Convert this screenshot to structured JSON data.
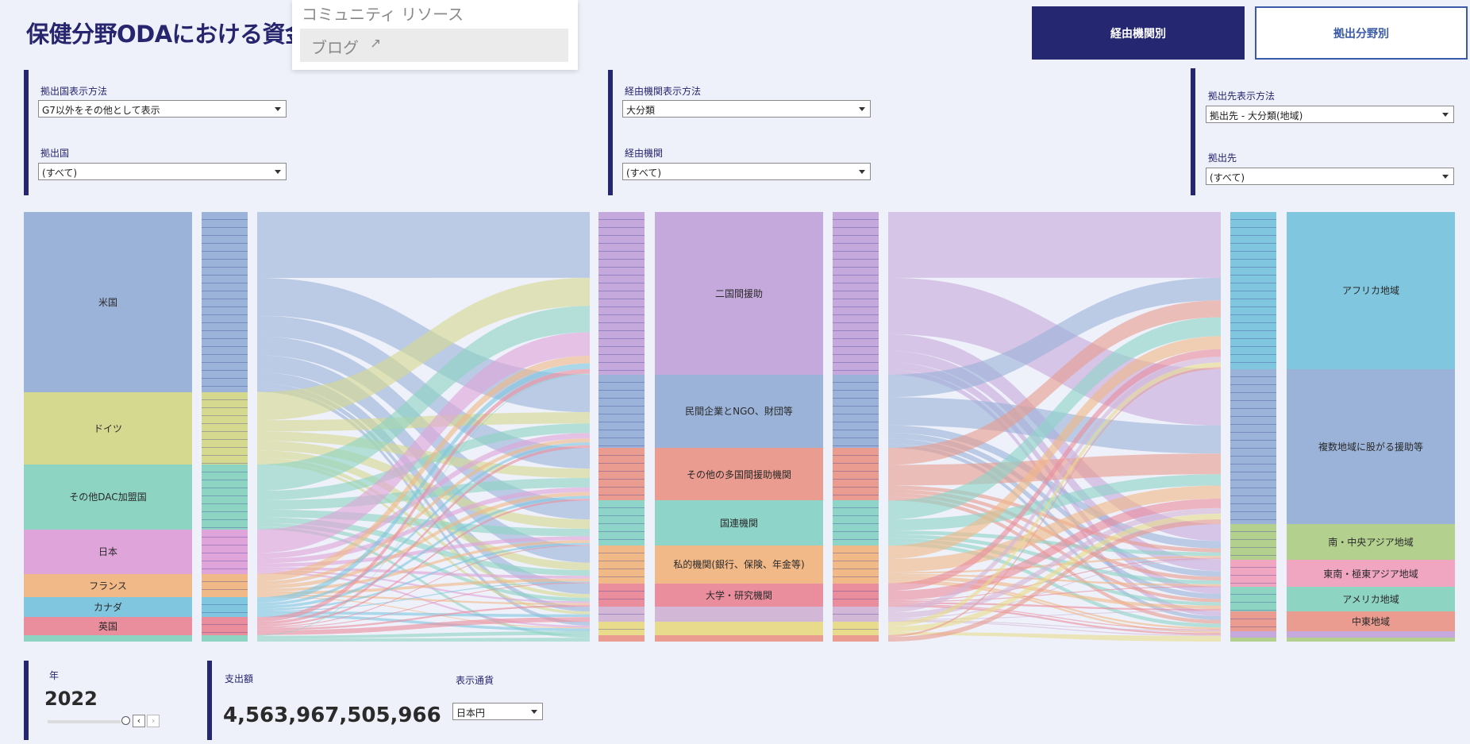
{
  "title": "保健分野ODAにおける資金",
  "menu": {
    "item1": "コミュニティ リソース",
    "item2": "ブログ",
    "item2_icon": "external-link-icon"
  },
  "tabs": {
    "a": "経由機関別",
    "b": "拠出分野別"
  },
  "filters": {
    "f1_label": "拠出国表示方法",
    "f1_value": "G7以外をその他として表示",
    "f2_label": "拠出国",
    "f2_value": "(すべて)",
    "f3_label": "経由機関表示方法",
    "f3_value": "大分類",
    "f4_label": "経由機関",
    "f4_value": "(すべて)",
    "f5_label": "拠出先表示方法",
    "f5_value": "拠出先 - 大分類(地域)",
    "f6_label": "拠出先",
    "f6_value": "(すべて)"
  },
  "bottom": {
    "year_label": "年",
    "year": "2022",
    "amount_label": "支出額",
    "amount": "4,563,967,505,966",
    "currency_label": "表示通貨",
    "currency": "日本円"
  },
  "sankey": {
    "donors": [
      {
        "name": "米国",
        "value": 191,
        "color": "#9bb3d8"
      },
      {
        "name": "ドイツ",
        "value": 77,
        "color": "#d5d98f"
      },
      {
        "name": "その他DAC加盟国",
        "value": 69,
        "color": "#8ed4c3"
      },
      {
        "name": "日本",
        "value": 47,
        "color": "#dfa4d9"
      },
      {
        "name": "フランス",
        "value": 25,
        "color": "#f1b888"
      },
      {
        "name": "カナダ",
        "value": 21,
        "color": "#7fc6de"
      },
      {
        "name": "英国",
        "value": 19,
        "color": "#ea8e9e"
      },
      {
        "name": "",
        "value": 7,
        "color": "#8ed4c3"
      }
    ],
    "channels": [
      {
        "name": "二国間援助",
        "value": 173,
        "color": "#c6a9dc"
      },
      {
        "name": "民間企業とNGO、財団等",
        "value": 78,
        "color": "#9bb3d8"
      },
      {
        "name": "その他の多国間援助機関",
        "value": 56,
        "color": "#e99c8f"
      },
      {
        "name": "国連機関",
        "value": 48,
        "color": "#8ed4c8"
      },
      {
        "name": "私的機関(銀行、保険、年金等)",
        "value": 40,
        "color": "#f1b888"
      },
      {
        "name": "大学・研究機関",
        "value": 25,
        "color": "#ea8e9e"
      },
      {
        "name": "",
        "value": 16,
        "color": "#d3b7d7"
      },
      {
        "name": "",
        "value": 14,
        "color": "#e8dc8c"
      },
      {
        "name": "",
        "value": 7,
        "color": "#e99c8f"
      }
    ],
    "recipients": [
      {
        "name": "アフリカ地域",
        "value": 167,
        "color": "#7fc6de"
      },
      {
        "name": "複数地域に股がる援助等",
        "value": 165,
        "color": "#9bb3d8"
      },
      {
        "name": "南・中央アジア地域",
        "value": 38,
        "color": "#b3d08f"
      },
      {
        "name": "東南・極東アジア地域",
        "value": 29,
        "color": "#f0a5c0"
      },
      {
        "name": "アメリカ地域",
        "value": 26,
        "color": "#8ed4c3"
      },
      {
        "name": "中東地域",
        "value": 21,
        "color": "#e99c8f"
      },
      {
        "name": "",
        "value": 7,
        "color": "#c6a9dc"
      },
      {
        "name": "",
        "value": 4,
        "color": "#b3d08f"
      }
    ],
    "flows_left": [
      [
        0,
        0,
        70
      ],
      [
        0,
        1,
        40
      ],
      [
        0,
        2,
        22
      ],
      [
        0,
        3,
        20
      ],
      [
        0,
        4,
        18
      ],
      [
        0,
        5,
        12
      ],
      [
        0,
        6,
        5
      ],
      [
        0,
        7,
        4
      ],
      [
        1,
        0,
        30
      ],
      [
        1,
        1,
        12
      ],
      [
        1,
        2,
        10
      ],
      [
        1,
        3,
        10
      ],
      [
        1,
        4,
        8
      ],
      [
        1,
        5,
        4
      ],
      [
        1,
        6,
        3
      ],
      [
        2,
        0,
        28
      ],
      [
        2,
        1,
        10
      ],
      [
        2,
        2,
        10
      ],
      [
        2,
        3,
        8
      ],
      [
        2,
        4,
        6
      ],
      [
        2,
        5,
        4
      ],
      [
        2,
        8,
        3
      ],
      [
        3,
        0,
        25
      ],
      [
        3,
        1,
        6
      ],
      [
        3,
        2,
        5
      ],
      [
        3,
        3,
        4
      ],
      [
        3,
        4,
        3
      ],
      [
        3,
        5,
        2
      ],
      [
        3,
        7,
        2
      ],
      [
        4,
        0,
        8
      ],
      [
        4,
        1,
        4
      ],
      [
        4,
        2,
        4
      ],
      [
        4,
        3,
        3
      ],
      [
        4,
        4,
        3
      ],
      [
        4,
        5,
        2
      ],
      [
        4,
        7,
        1
      ],
      [
        5,
        0,
        6
      ],
      [
        5,
        1,
        3
      ],
      [
        5,
        2,
        3
      ],
      [
        5,
        3,
        2
      ],
      [
        5,
        4,
        1
      ],
      [
        5,
        6,
        3
      ],
      [
        5,
        7,
        3
      ],
      [
        6,
        0,
        5
      ],
      [
        6,
        1,
        3
      ],
      [
        6,
        2,
        2
      ],
      [
        6,
        3,
        1
      ],
      [
        6,
        4,
        1
      ],
      [
        6,
        5,
        2
      ],
      [
        6,
        6,
        5
      ],
      [
        7,
        0,
        1
      ],
      [
        7,
        3,
        0
      ],
      [
        7,
        7,
        4
      ],
      [
        7,
        8,
        4
      ],
      [
        7,
        6,
        0
      ]
    ],
    "flows_right": [
      [
        0,
        0,
        70
      ],
      [
        0,
        1,
        60
      ],
      [
        0,
        2,
        18
      ],
      [
        0,
        3,
        12
      ],
      [
        0,
        4,
        8
      ],
      [
        0,
        5,
        5
      ],
      [
        1,
        0,
        24
      ],
      [
        1,
        1,
        30
      ],
      [
        1,
        2,
        8
      ],
      [
        1,
        3,
        6
      ],
      [
        1,
        4,
        6
      ],
      [
        1,
        5,
        4
      ],
      [
        2,
        0,
        18
      ],
      [
        2,
        1,
        22
      ],
      [
        2,
        2,
        4
      ],
      [
        2,
        3,
        4
      ],
      [
        2,
        4,
        4
      ],
      [
        2,
        5,
        4
      ],
      [
        3,
        0,
        20
      ],
      [
        3,
        1,
        12
      ],
      [
        3,
        2,
        4
      ],
      [
        3,
        3,
        4
      ],
      [
        3,
        4,
        4
      ],
      [
        3,
        5,
        4
      ],
      [
        4,
        0,
        14
      ],
      [
        4,
        1,
        14
      ],
      [
        4,
        2,
        2
      ],
      [
        4,
        3,
        2
      ],
      [
        4,
        4,
        4
      ],
      [
        4,
        5,
        2
      ],
      [
        4,
        6,
        2
      ],
      [
        5,
        0,
        8
      ],
      [
        5,
        1,
        10
      ],
      [
        5,
        2,
        1
      ],
      [
        5,
        3,
        1
      ],
      [
        5,
        4,
        2
      ],
      [
        5,
        5,
        1
      ],
      [
        5,
        6,
        2
      ],
      [
        6,
        0,
        6
      ],
      [
        6,
        1,
        6
      ],
      [
        6,
        2,
        1
      ],
      [
        6,
        3,
        0
      ],
      [
        6,
        4,
        1
      ],
      [
        6,
        5,
        1
      ],
      [
        6,
        6,
        1
      ],
      [
        7,
        0,
        5
      ],
      [
        7,
        1,
        6
      ],
      [
        7,
        3,
        0
      ],
      [
        7,
        6,
        2
      ],
      [
        7,
        7,
        1
      ],
      [
        8,
        0,
        2
      ],
      [
        8,
        1,
        5
      ],
      [
        8,
        7,
        0
      ]
    ]
  }
}
